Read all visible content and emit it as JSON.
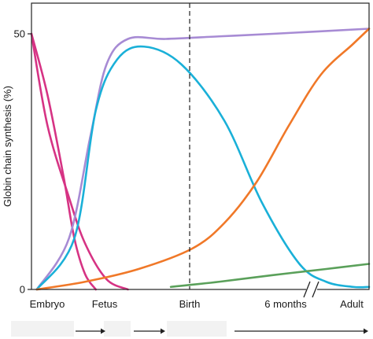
{
  "chart_data": {
    "type": "line",
    "title": "",
    "xlabel": "",
    "ylabel": "Globin chain synthesis (%)",
    "ylim": [
      0,
      50
    ],
    "yticks": [
      {
        "value": 0,
        "label": "0"
      },
      {
        "value": 50,
        "label": "50"
      }
    ],
    "xticks": [
      "Embryo",
      "Fetus",
      "Birth",
      "6 months",
      "Adult"
    ],
    "x_axis_break_between": [
      "Birth",
      "6 months"
    ],
    "vertical_marker_at": "Birth",
    "grid": false,
    "legend": "none",
    "series": [
      {
        "color": "#d63384",
        "values": [
          [
            0.0,
            50
          ],
          [
            0.3,
            38
          ],
          [
            0.6,
            22
          ],
          [
            0.8,
            10
          ],
          [
            1.0,
            3
          ],
          [
            1.2,
            0
          ]
        ]
      },
      {
        "color": "#d63384",
        "values": [
          [
            0.0,
            50
          ],
          [
            0.3,
            32
          ],
          [
            0.7,
            18
          ],
          [
            1.0,
            9
          ],
          [
            1.4,
            2
          ],
          [
            1.8,
            0
          ]
        ]
      },
      {
        "color": "#a78bd4",
        "values": [
          [
            0.1,
            0
          ],
          [
            0.7,
            10
          ],
          [
            1.1,
            30
          ],
          [
            1.4,
            44
          ],
          [
            1.8,
            49
          ],
          [
            2.5,
            49
          ],
          [
            3.5,
            49.5
          ],
          [
            4.5,
            50
          ],
          [
            6.3,
            51
          ]
        ]
      },
      {
        "color": "#1ab0d8",
        "values": [
          [
            0.1,
            0
          ],
          [
            0.8,
            10
          ],
          [
            1.2,
            35
          ],
          [
            1.6,
            45
          ],
          [
            2.1,
            47.5
          ],
          [
            2.8,
            44
          ],
          [
            3.6,
            33
          ],
          [
            4.3,
            17
          ],
          [
            5.0,
            5
          ],
          [
            5.5,
            1.5
          ],
          [
            6.0,
            0.5
          ],
          [
            6.3,
            0.5
          ]
        ]
      },
      {
        "color": "#f07828",
        "values": [
          [
            0.1,
            0
          ],
          [
            1.0,
            1.5
          ],
          [
            2.0,
            4
          ],
          [
            3.0,
            8
          ],
          [
            3.6,
            13
          ],
          [
            4.2,
            21
          ],
          [
            4.8,
            32
          ],
          [
            5.4,
            42
          ],
          [
            6.0,
            48
          ],
          [
            6.3,
            51
          ]
        ]
      },
      {
        "color": "#5aa05a",
        "values": [
          [
            2.6,
            0.5
          ],
          [
            3.5,
            1.5
          ],
          [
            4.5,
            2.8
          ],
          [
            5.5,
            4
          ],
          [
            6.3,
            5
          ]
        ]
      }
    ]
  }
}
